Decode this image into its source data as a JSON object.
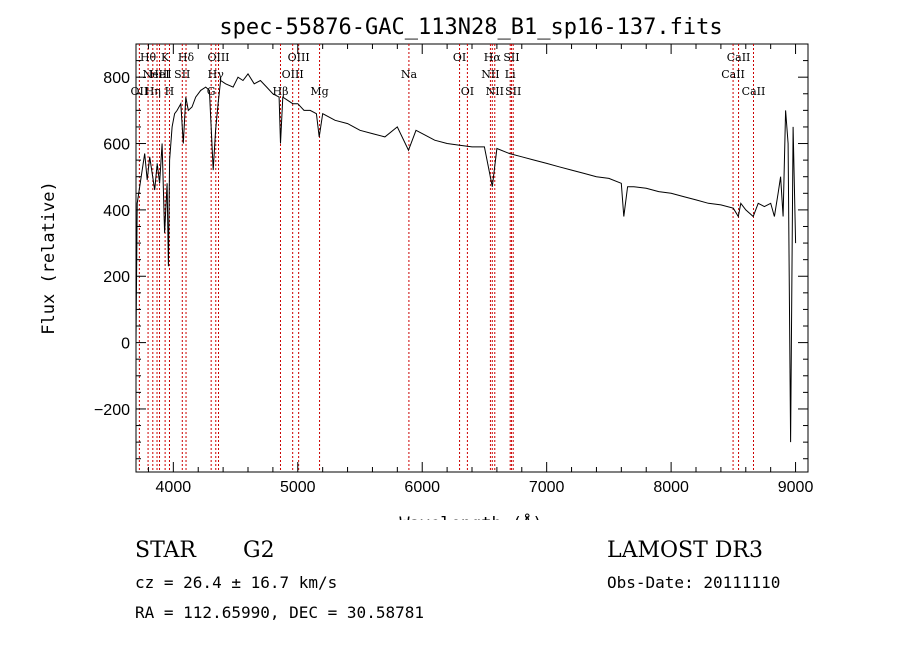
{
  "chart_data": {
    "type": "line",
    "title": "spec-55876-GAC_113N28_B1_sp16-137.fits",
    "xlabel": "Wavelength (Å)",
    "ylabel": "Flux (relative)",
    "xlim": [
      3700,
      9100
    ],
    "ylim": [
      -390,
      900
    ],
    "xticks": [
      4000,
      5000,
      6000,
      7000,
      8000,
      9000
    ],
    "yticks": [
      -200,
      0,
      200,
      400,
      600,
      800
    ],
    "grid": false,
    "series": [
      {
        "x": [
          3700,
          3710,
          3730,
          3750,
          3770,
          3790,
          3810,
          3830,
          3850,
          3870,
          3890,
          3910,
          3930,
          3950,
          3960,
          3970,
          3990,
          4010,
          4030,
          4060,
          4080,
          4100,
          4120,
          4150,
          4180,
          4220,
          4260,
          4290,
          4320,
          4340,
          4360,
          4380,
          4420,
          4480,
          4520,
          4560,
          4600,
          4650,
          4700,
          4750,
          4800,
          4850,
          4861,
          4880,
          4920,
          4960,
          5000,
          5050,
          5100,
          5150,
          5172,
          5200,
          5300,
          5400,
          5500,
          5600,
          5700,
          5800,
          5890,
          5950,
          6000,
          6100,
          6200,
          6300,
          6400,
          6500,
          6563,
          6600,
          6700,
          6800,
          6900,
          7000,
          7100,
          7200,
          7300,
          7400,
          7500,
          7600,
          7620,
          7650,
          7700,
          7800,
          7900,
          8000,
          8100,
          8200,
          8300,
          8400,
          8500,
          8540,
          8560,
          8600,
          8660,
          8700,
          8750,
          8800,
          8830,
          8860,
          8880,
          8900,
          8920,
          8940,
          8960,
          8980,
          9000
        ],
        "values": [
          0,
          420,
          470,
          520,
          570,
          490,
          560,
          510,
          460,
          540,
          480,
          600,
          330,
          480,
          230,
          550,
          650,
          690,
          700,
          720,
          600,
          740,
          700,
          710,
          740,
          760,
          770,
          760,
          520,
          640,
          720,
          790,
          780,
          770,
          800,
          790,
          810,
          780,
          790,
          770,
          750,
          740,
          600,
          740,
          730,
          720,
          720,
          700,
          700,
          690,
          620,
          690,
          670,
          660,
          640,
          630,
          620,
          650,
          580,
          640,
          630,
          610,
          600,
          595,
          590,
          590,
          470,
          585,
          570,
          560,
          550,
          540,
          530,
          520,
          510,
          500,
          495,
          480,
          380,
          470,
          470,
          465,
          455,
          450,
          440,
          430,
          420,
          415,
          405,
          380,
          420,
          400,
          380,
          420,
          410,
          420,
          380,
          450,
          500,
          380,
          700,
          600,
          -300,
          650,
          300
        ]
      }
    ],
    "lines": [
      {
        "x": 3727,
        "row": 2,
        "label": "OII"
      },
      {
        "x": 3797,
        "row": 0,
        "label": "Hθ"
      },
      {
        "x": 3835,
        "row": 2,
        "label": "Hη"
      },
      {
        "x": 3869,
        "row": 1,
        "label": "NeIII"
      },
      {
        "x": 3889,
        "row": 1,
        "label": "HeI"
      },
      {
        "x": 3934,
        "row": 0,
        "label": "K"
      },
      {
        "x": 3969,
        "row": 2,
        "label": "H"
      },
      {
        "x": 4072,
        "row": 1,
        "label": "SII"
      },
      {
        "x": 4102,
        "row": 0,
        "label": "Hδ"
      },
      {
        "x": 4304,
        "row": 2,
        "label": "G"
      },
      {
        "x": 4341,
        "row": 1,
        "label": "Hγ"
      },
      {
        "x": 4363,
        "row": 0,
        "label": "OIII"
      },
      {
        "x": 4861,
        "row": 2,
        "label": "Hβ"
      },
      {
        "x": 4959,
        "row": 1,
        "label": "OIII"
      },
      {
        "x": 5007,
        "row": 0,
        "label": "OIII"
      },
      {
        "x": 5175,
        "row": 2,
        "label": "Mg"
      },
      {
        "x": 5893,
        "row": 1,
        "label": "Na"
      },
      {
        "x": 6300,
        "row": 0,
        "label": "OI"
      },
      {
        "x": 6363,
        "row": 2,
        "label": "OI"
      },
      {
        "x": 6548,
        "row": 1,
        "label": "NII"
      },
      {
        "x": 6563,
        "row": 0,
        "label": "Hα"
      },
      {
        "x": 6583,
        "row": 2,
        "label": "NII"
      },
      {
        "x": 6707,
        "row": 1,
        "label": "Li"
      },
      {
        "x": 6717,
        "row": 0,
        "label": "SII"
      },
      {
        "x": 6731,
        "row": 2,
        "label": "SII"
      },
      {
        "x": 8498,
        "row": 1,
        "label": "CaII"
      },
      {
        "x": 8542,
        "row": 0,
        "label": "CaII"
      },
      {
        "x": 8662,
        "row": 2,
        "label": "CaII"
      }
    ],
    "line_color": "#cc0000"
  },
  "info": {
    "class_label": "STAR",
    "subclass_label": "G2",
    "survey_label": "LAMOST DR3",
    "redshift_text": "cz = 26.4 ± 16.7 km/s",
    "obs_date_text": "Obs-Date: 20111110",
    "coords_text": "RA = 112.65990, DEC =  30.58781"
  }
}
